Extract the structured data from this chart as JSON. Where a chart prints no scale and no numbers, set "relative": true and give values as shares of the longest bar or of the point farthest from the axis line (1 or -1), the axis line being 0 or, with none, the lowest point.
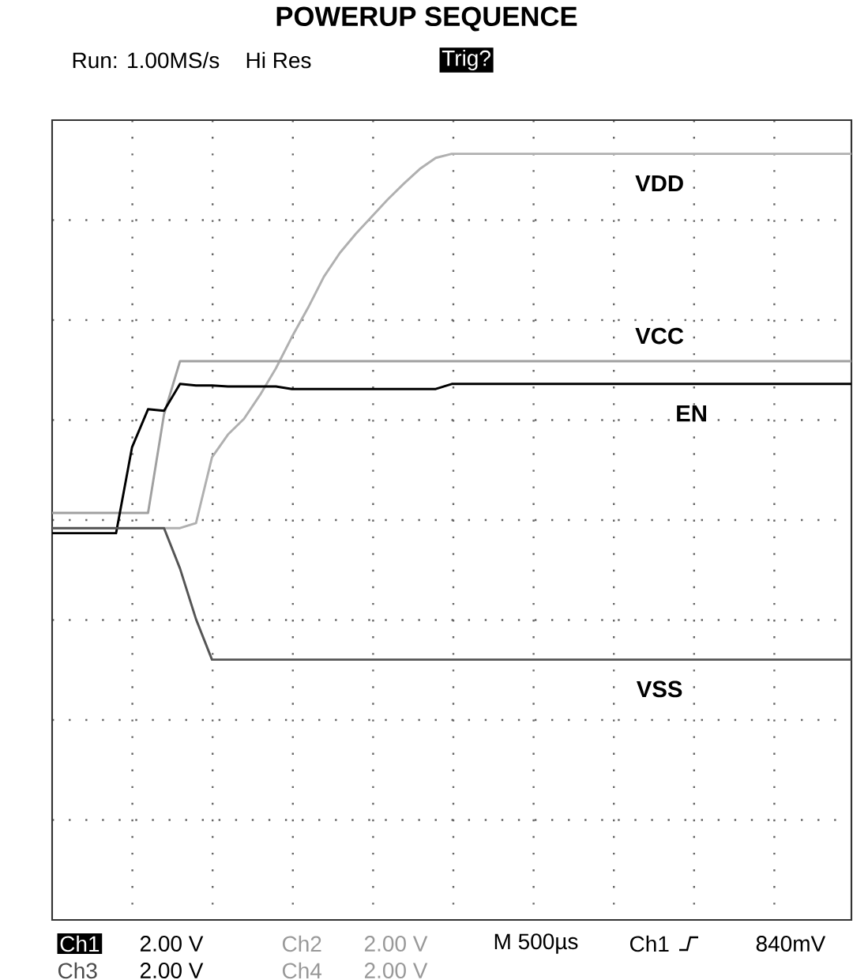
{
  "chart_data": {
    "type": "line",
    "title": "POWERUP SEQUENCE",
    "relative": true,
    "grid": true,
    "line_style": "solid",
    "marker": "none",
    "categories": [
      null,
      null,
      null,
      null,
      null,
      null,
      null,
      null,
      null,
      null,
      null,
      null,
      null,
      null,
      null,
      null,
      null,
      null,
      null,
      null,
      null,
      null,
      null,
      null,
      null,
      null,
      null,
      null,
      null,
      null,
      null,
      null,
      null,
      null,
      null,
      null,
      null,
      null,
      null,
      null,
      null,
      null,
      null,
      null,
      null,
      null,
      null,
      null,
      null,
      null,
      null
    ],
    "series": [
      {
        "name": "VDD",
        "color": "#b0b0b0",
        "values": [
          0.26,
          0.26,
          0.26,
          0.26,
          0.26,
          0.26,
          0.26,
          0.26,
          0.26,
          0.27,
          0.4,
          0.445,
          0.476,
          0.523,
          0.576,
          0.638,
          0.695,
          0.757,
          0.804,
          0.842,
          0.876,
          0.91,
          0.941,
          0.97,
          0.992,
          1,
          1,
          1,
          1,
          1,
          1,
          1,
          1,
          1,
          1,
          1,
          1,
          1,
          1,
          1,
          1,
          1,
          1,
          1,
          1,
          1,
          1,
          1,
          1,
          1,
          1
        ]
      },
      {
        "name": "VCC",
        "color": "#a0a0a0",
        "values": [
          0.29,
          0.29,
          0.29,
          0.29,
          0.29,
          0.29,
          0.29,
          0.485,
          0.59,
          0.59,
          0.59,
          0.59,
          0.59,
          0.59,
          0.59,
          0.59,
          0.59,
          0.59,
          0.59,
          0.59,
          0.59,
          0.59,
          0.59,
          0.59,
          0.59,
          0.59,
          0.59,
          0.59,
          0.59,
          0.59,
          0.59,
          0.59,
          0.59,
          0.59,
          0.59,
          0.59,
          0.59,
          0.59,
          0.59,
          0.59,
          0.59,
          0.59,
          0.59,
          0.59,
          0.59,
          0.59,
          0.59,
          0.59,
          0.59,
          0.59,
          0.59
        ]
      },
      {
        "name": "EN",
        "color": "#000000",
        "values": [
          0.25,
          0.25,
          0.25,
          0.25,
          0.25,
          0.42,
          0.495,
          0.492,
          0.545,
          0.542,
          0.542,
          0.54,
          0.54,
          0.54,
          0.54,
          0.535,
          0.535,
          0.535,
          0.535,
          0.535,
          0.535,
          0.535,
          0.535,
          0.535,
          0.535,
          0.545,
          0.545,
          0.545,
          0.545,
          0.545,
          0.545,
          0.545,
          0.545,
          0.545,
          0.545,
          0.545,
          0.545,
          0.545,
          0.545,
          0.545,
          0.545,
          0.545,
          0.545,
          0.545,
          0.545,
          0.545,
          0.545,
          0.545,
          0.545,
          0.545,
          0.545
        ]
      },
      {
        "name": "VSS",
        "color": "#555555",
        "values": [
          0.26,
          0.26,
          0.26,
          0.26,
          0.26,
          0.26,
          0.26,
          0.26,
          0.18,
          0.08,
          0,
          0,
          0,
          0,
          0,
          0,
          0,
          0,
          0,
          0,
          0,
          0,
          0,
          0,
          0,
          0,
          0,
          0,
          0,
          0,
          0,
          0,
          0,
          0,
          0,
          0,
          0,
          0,
          0,
          0,
          0,
          0,
          0,
          0,
          0,
          0,
          0,
          0,
          0,
          0,
          0
        ]
      }
    ],
    "annotations": [
      "Run: 1.00MS/s",
      "Hi Res",
      "Trig?",
      "Ch1",
      "2.00 V",
      "Ch2",
      "2.00 V",
      "M 500µs",
      "Ch1",
      "840mV",
      "Ch3",
      "2.00 V",
      "Ch4",
      "2.00 V"
    ]
  }
}
